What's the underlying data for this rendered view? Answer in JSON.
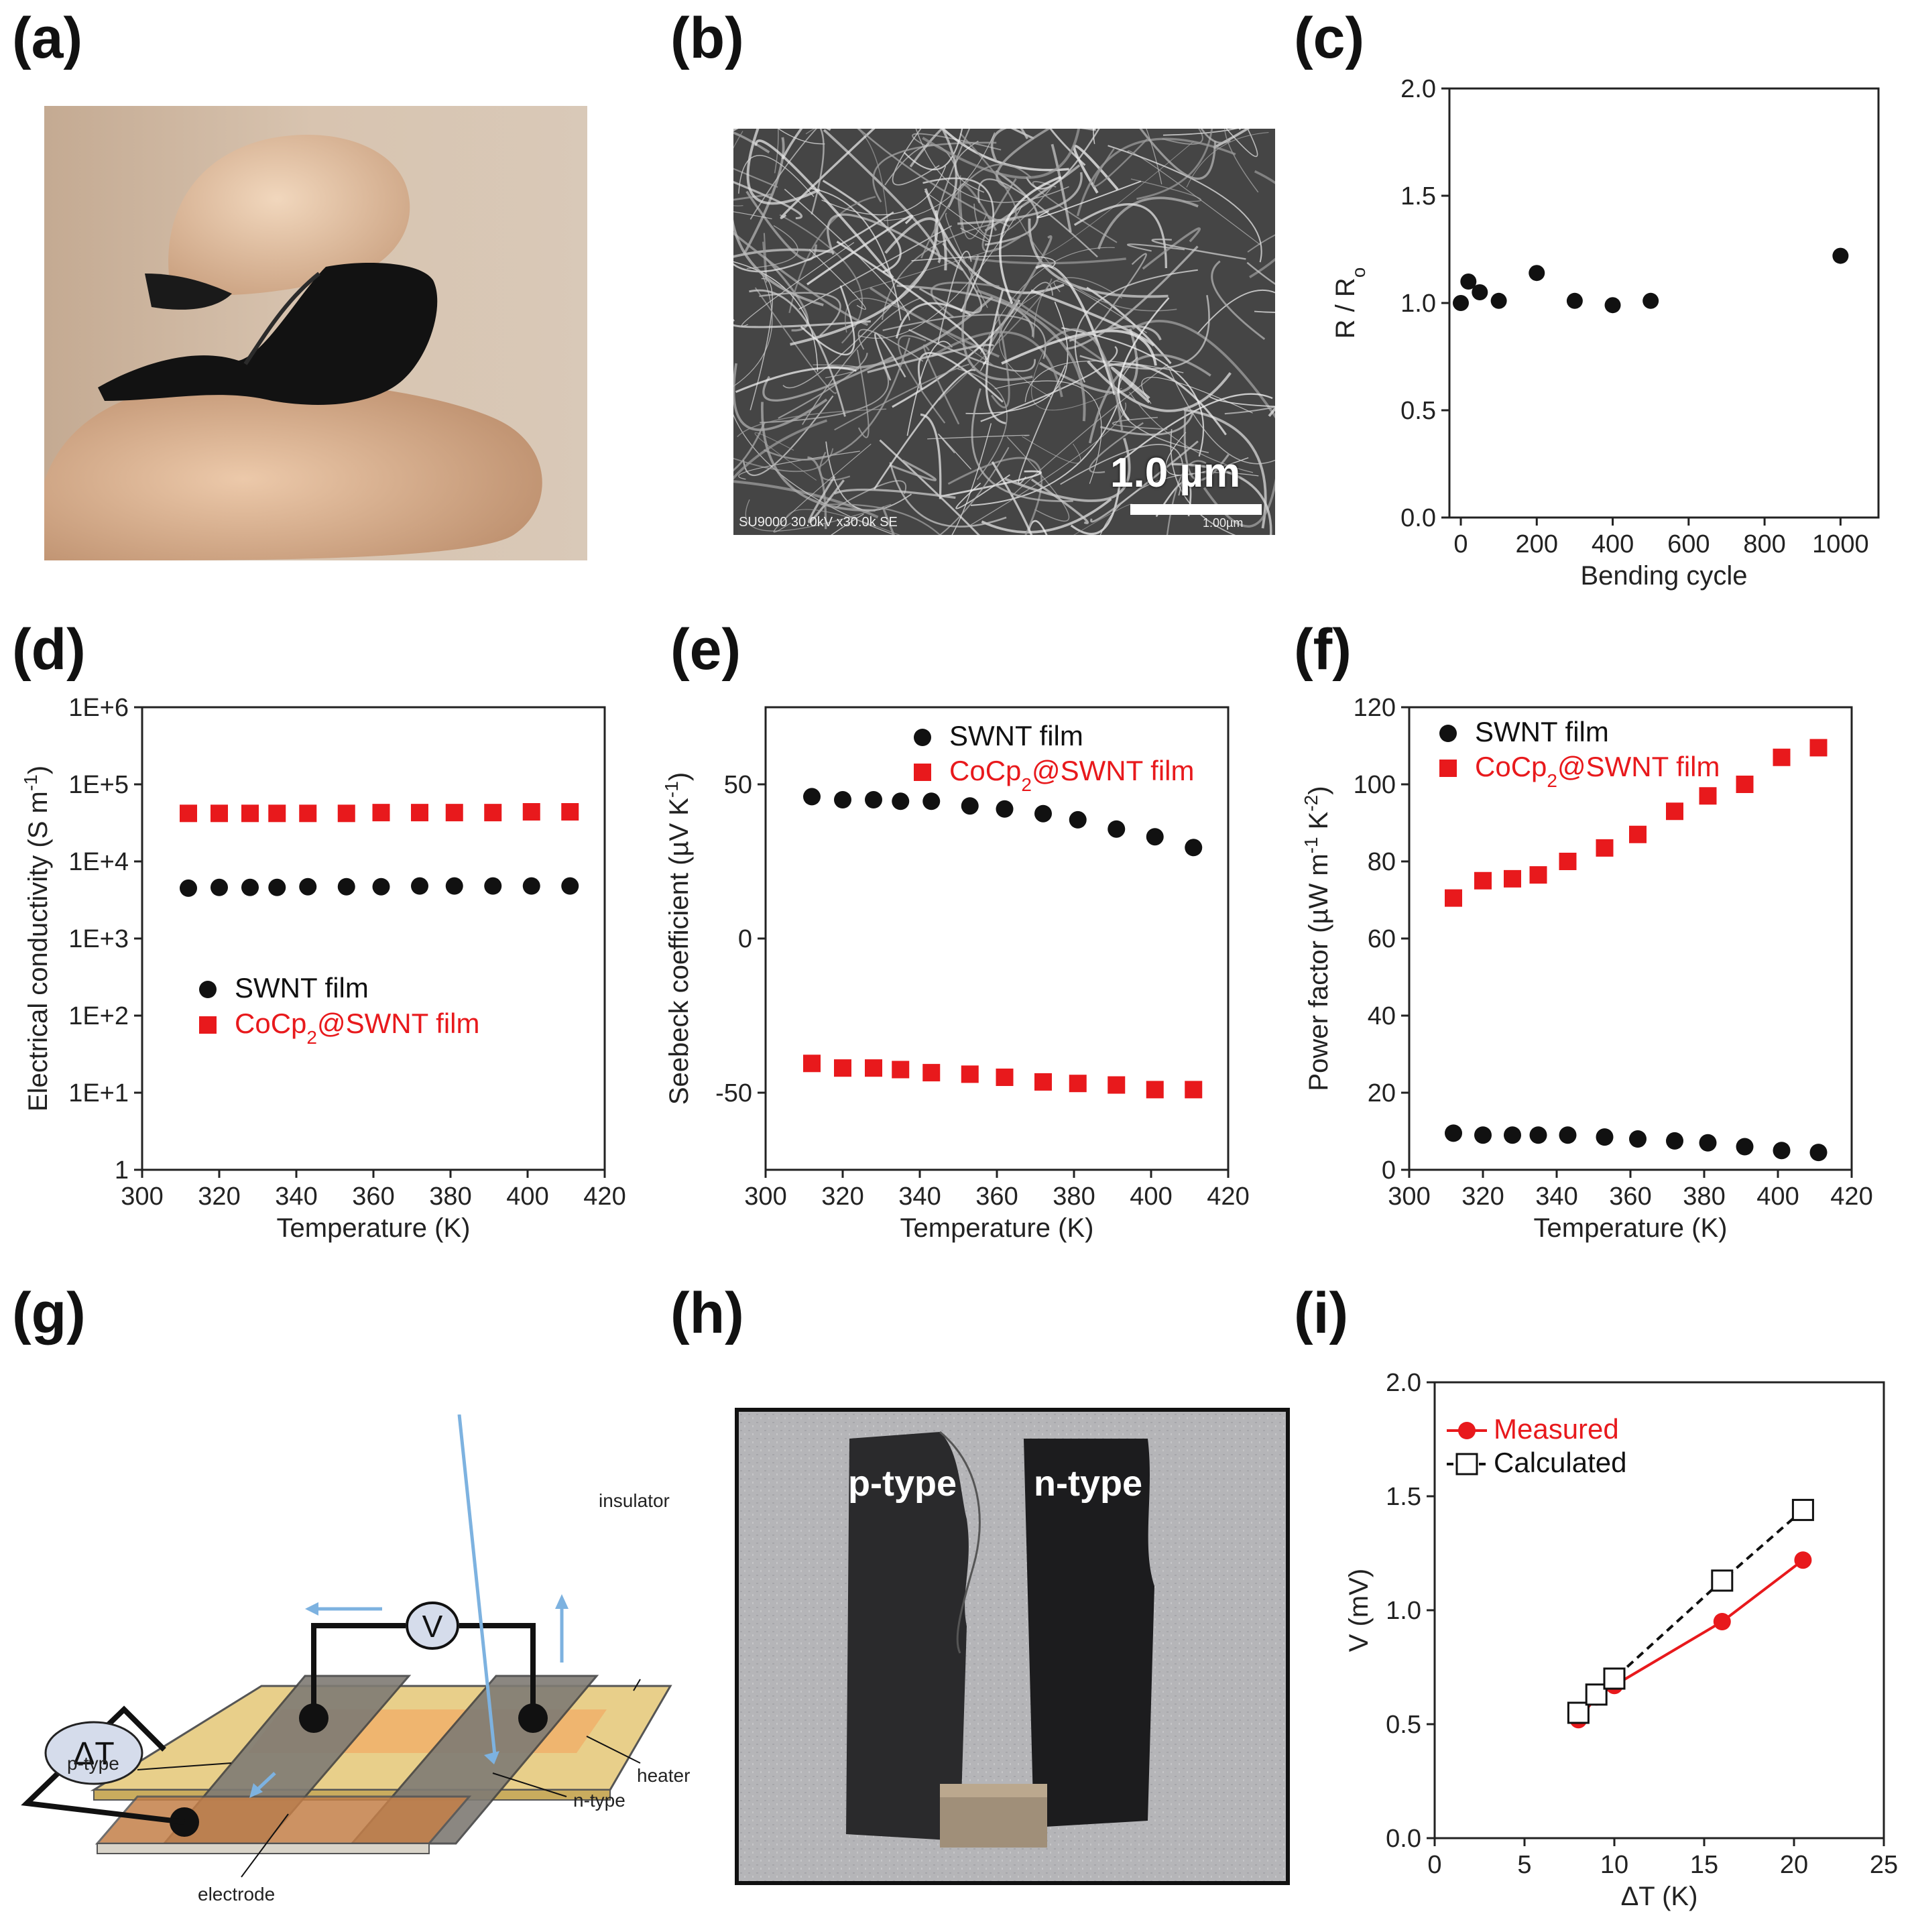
{
  "panels": {
    "a": {
      "label": "(a)"
    },
    "b": {
      "label": "(b)",
      "scalebar": "1.0 µm",
      "sem_info": "SU9000 30.0kV x30.0k SE",
      "sem_scale_small": "1.00µm"
    },
    "c": {
      "label": "(c)"
    },
    "d": {
      "label": "(d)"
    },
    "e": {
      "label": "(e)"
    },
    "f": {
      "label": "(f)"
    },
    "g": {
      "label": "(g)",
      "v_label": "V",
      "dt_label": "ΔT",
      "insulator": "insulator",
      "heater": "heater",
      "p_type": "p-type",
      "n_type": "n-type",
      "electrode": "electrode"
    },
    "h": {
      "label": "(h)",
      "p_type": "p-type",
      "n_type": "n-type"
    },
    "i": {
      "label": "(i)"
    }
  },
  "colors": {
    "black": "#111111",
    "red": "#e8191c"
  },
  "chart_data": [
    {
      "id": "c",
      "type": "scatter",
      "xlabel": "Bending cycle",
      "ylabel": "R / R",
      "ylabel_sub": "o",
      "xlim": [
        -30,
        1100
      ],
      "ylim": [
        0,
        2.0
      ],
      "xticks": [
        0,
        200,
        400,
        600,
        800,
        1000
      ],
      "yticks": [
        0.0,
        0.5,
        1.0,
        1.5,
        2.0
      ],
      "ytick_labels": [
        "0.0",
        "0.5",
        "1.0",
        "1.5",
        "2.0"
      ],
      "series": [
        {
          "name": "R/Ro",
          "color": "#111111",
          "marker": "circle",
          "x": [
            0,
            20,
            50,
            100,
            200,
            300,
            400,
            500,
            1000
          ],
          "y": [
            1.0,
            1.1,
            1.05,
            1.01,
            1.14,
            1.01,
            0.99,
            1.01,
            1.22
          ]
        }
      ]
    },
    {
      "id": "d",
      "type": "scatter",
      "yscale": "log",
      "xlabel": "Temperature (K)",
      "ylabel": "Electrical conductivity (S m",
      "ylabel_sup": "-1",
      "ylabel_end": ")",
      "xlim": [
        300,
        420
      ],
      "ylim": [
        1,
        1000000
      ],
      "xticks": [
        300,
        320,
        340,
        360,
        380,
        400,
        420
      ],
      "yticks": [
        1,
        10,
        100,
        1000,
        10000,
        100000,
        1000000
      ],
      "ytick_labels": [
        "1",
        "1E+1",
        "1E+2",
        "1E+3",
        "1E+4",
        "1E+5",
        "1E+6"
      ],
      "legend": [
        {
          "text": "SWNT film",
          "color": "#111111",
          "marker": "circle"
        },
        {
          "text": "CoCp",
          "sub": "2",
          "rest": "@SWNT film",
          "color": "#e8191c",
          "marker": "square"
        }
      ],
      "series": [
        {
          "name": "SWNT film",
          "color": "#111111",
          "marker": "circle",
          "x": [
            312,
            320,
            328,
            335,
            343,
            353,
            362,
            372,
            381,
            391,
            401,
            411
          ],
          "y": [
            4500,
            4600,
            4600,
            4600,
            4700,
            4700,
            4700,
            4800,
            4800,
            4800,
            4800,
            4800
          ]
        },
        {
          "name": "CoCp2@SWNT film",
          "color": "#e8191c",
          "marker": "square",
          "x": [
            312,
            320,
            328,
            335,
            343,
            353,
            362,
            372,
            381,
            391,
            401,
            411
          ],
          "y": [
            42000,
            42000,
            42000,
            42000,
            42000,
            42000,
            43000,
            43000,
            43000,
            43000,
            44000,
            44000
          ]
        }
      ]
    },
    {
      "id": "e",
      "type": "scatter",
      "xlabel": "Temperature (K)",
      "ylabel": "Seebeck coefficient (µV K",
      "ylabel_sup": "-1",
      "ylabel_end": ")",
      "xlim": [
        300,
        420
      ],
      "ylim": [
        -75,
        75
      ],
      "xticks": [
        300,
        320,
        340,
        360,
        380,
        400,
        420
      ],
      "yticks": [
        -50,
        0,
        50
      ],
      "ytick_labels": [
        "-50",
        "0",
        "50"
      ],
      "legend": [
        {
          "text": "SWNT film",
          "color": "#111111",
          "marker": "circle"
        },
        {
          "text": "CoCp",
          "sub": "2",
          "rest": "@SWNT film",
          "color": "#e8191c",
          "marker": "square"
        }
      ],
      "series": [
        {
          "name": "SWNT film",
          "color": "#111111",
          "marker": "circle",
          "x": [
            312,
            320,
            328,
            335,
            343,
            353,
            362,
            372,
            381,
            391,
            401,
            411
          ],
          "y": [
            46,
            45,
            45,
            44.5,
            44.5,
            43,
            42,
            40.5,
            38.5,
            35.5,
            33,
            29.5
          ]
        },
        {
          "name": "CoCp2@SWNT film",
          "color": "#e8191c",
          "marker": "square",
          "x": [
            312,
            320,
            328,
            335,
            343,
            353,
            362,
            372,
            381,
            391,
            401,
            411
          ],
          "y": [
            -40.5,
            -42,
            -42,
            -42.5,
            -43.5,
            -44,
            -45,
            -46.5,
            -47,
            -47.5,
            -49,
            -49
          ]
        }
      ]
    },
    {
      "id": "f",
      "type": "scatter",
      "xlabel": "Temperature (K)",
      "ylabel": "Power factor (µW m",
      "ylabel_sup": "-1",
      "ylabel_mid": " K",
      "ylabel_sup2": "-2",
      "ylabel_end": ")",
      "xlim": [
        300,
        420
      ],
      "ylim": [
        0,
        120
      ],
      "xticks": [
        300,
        320,
        340,
        360,
        380,
        400,
        420
      ],
      "yticks": [
        0,
        20,
        40,
        60,
        80,
        100,
        120
      ],
      "ytick_labels": [
        "0",
        "20",
        "40",
        "60",
        "80",
        "100",
        "120"
      ],
      "legend": [
        {
          "text": "SWNT film",
          "color": "#111111",
          "marker": "circle"
        },
        {
          "text": "CoCp",
          "sub": "2",
          "rest": "@SWNT film",
          "color": "#e8191c",
          "marker": "square"
        }
      ],
      "series": [
        {
          "name": "SWNT film",
          "color": "#111111",
          "marker": "circle",
          "x": [
            312,
            320,
            328,
            335,
            343,
            353,
            362,
            372,
            381,
            391,
            401,
            411
          ],
          "y": [
            9.5,
            9,
            9,
            9,
            9,
            8.5,
            8,
            7.5,
            7,
            6,
            5,
            4.5
          ]
        },
        {
          "name": "CoCp2@SWNT film",
          "color": "#e8191c",
          "marker": "square",
          "x": [
            312,
            320,
            328,
            335,
            343,
            353,
            362,
            372,
            381,
            391,
            401,
            411
          ],
          "y": [
            70.5,
            75,
            75.5,
            76.5,
            80,
            83.5,
            87,
            93,
            97,
            100,
            107,
            109.5
          ]
        }
      ]
    },
    {
      "id": "i",
      "type": "line",
      "xlabel": "ΔT (K)",
      "ylabel": "V (mV)",
      "xlim": [
        0,
        25
      ],
      "ylim": [
        0,
        2.0
      ],
      "xticks": [
        0,
        5,
        10,
        15,
        20,
        25
      ],
      "yticks": [
        0.0,
        0.5,
        1.0,
        1.5,
        2.0
      ],
      "ytick_labels": [
        "0.0",
        "0.5",
        "1.0",
        "1.5",
        "2.0"
      ],
      "legend": [
        {
          "text": "Measured",
          "color": "#e8191c",
          "marker": "circle"
        },
        {
          "text": "Calculated",
          "color": "#111111",
          "marker": "open-square"
        }
      ],
      "series": [
        {
          "name": "Measured",
          "color": "#e8191c",
          "marker": "circle",
          "line": "solid",
          "x": [
            8,
            9,
            10,
            16,
            20.5
          ],
          "y": [
            0.52,
            0.62,
            0.67,
            0.95,
            1.22
          ]
        },
        {
          "name": "Calculated",
          "color": "#111111",
          "marker": "open-square",
          "line": "dashed",
          "x": [
            8,
            9,
            10,
            16,
            20.5
          ],
          "y": [
            0.55,
            0.63,
            0.7,
            1.13,
            1.44
          ]
        }
      ]
    }
  ]
}
